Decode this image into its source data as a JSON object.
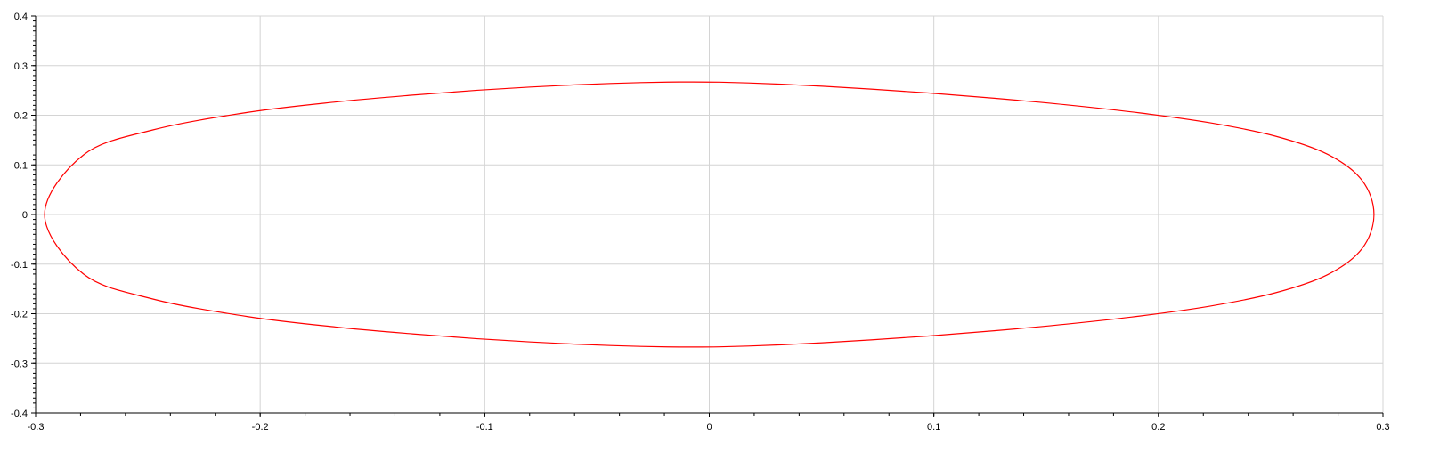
{
  "chart_data": {
    "type": "line",
    "title": "",
    "xlabel": "",
    "ylabel": "",
    "xlim": [
      -0.3,
      0.3
    ],
    "ylim": [
      -0.4,
      0.4
    ],
    "grid": true,
    "x_ticks": [
      {
        "value": -0.3,
        "label": "-0.3"
      },
      {
        "value": -0.2,
        "label": "-0.2"
      },
      {
        "value": -0.1,
        "label": "-0.1"
      },
      {
        "value": 0,
        "label": "0"
      },
      {
        "value": 0.1,
        "label": "0.1"
      },
      {
        "value": 0.2,
        "label": "0.2"
      },
      {
        "value": 0.3,
        "label": "0.3"
      }
    ],
    "y_ticks": [
      {
        "value": 0.4,
        "label": "0.4"
      },
      {
        "value": 0.3,
        "label": "0.3"
      },
      {
        "value": 0.2,
        "label": "0.2"
      },
      {
        "value": 0.1,
        "label": "0.1"
      },
      {
        "value": 0,
        "label": "0"
      },
      {
        "value": -0.1,
        "label": "-0.1"
      },
      {
        "value": -0.2,
        "label": "-0.2"
      },
      {
        "value": -0.3,
        "label": "-0.3"
      },
      {
        "value": -0.4,
        "label": "-0.4"
      }
    ],
    "series": [
      {
        "color": "#ff0000",
        "closed": true,
        "x": [
          0.296,
          0.2906,
          0.2752,
          0.2519,
          0.2232,
          0.1913,
          0.1586,
          0.1269,
          0.0977,
          0.072,
          0.0503,
          0.0323,
          0.0173,
          0.0045,
          -0.0072,
          -0.0185,
          -0.0306,
          -0.0441,
          -0.0601,
          -0.0796,
          -0.1034,
          -0.1322,
          -0.1663,
          -0.2055,
          -0.2476,
          -0.2787,
          -0.296,
          -0.2787,
          -0.2476,
          -0.2055,
          -0.1663,
          -0.1322,
          -0.1034,
          -0.0796,
          -0.0601,
          -0.0441,
          -0.0306,
          -0.0185,
          -0.0072,
          0.0045,
          0.0173,
          0.0323,
          0.0503,
          0.072,
          0.0977,
          0.1269,
          0.1586,
          0.1913,
          0.2232,
          0.2519,
          0.2752,
          0.2906,
          0.296
        ],
        "y": [
          0,
          0.0693,
          0.1216,
          0.1581,
          0.1846,
          0.2049,
          0.2212,
          0.2343,
          0.2448,
          0.2527,
          0.2585,
          0.2625,
          0.2651,
          0.2667,
          0.2671,
          0.2668,
          0.2658,
          0.264,
          0.2612,
          0.2568,
          0.2503,
          0.2406,
          0.2268,
          0.2058,
          0.1706,
          0.12,
          0,
          -0.12,
          -0.1706,
          -0.2058,
          -0.2268,
          -0.2406,
          -0.2503,
          -0.2568,
          -0.2612,
          -0.264,
          -0.2658,
          -0.2668,
          -0.2671,
          -0.2667,
          -0.2651,
          -0.2625,
          -0.2585,
          -0.2527,
          -0.2448,
          -0.2343,
          -0.2212,
          -0.2049,
          -0.1846,
          -0.1581,
          -0.1216,
          -0.0693,
          0
        ]
      }
    ]
  }
}
